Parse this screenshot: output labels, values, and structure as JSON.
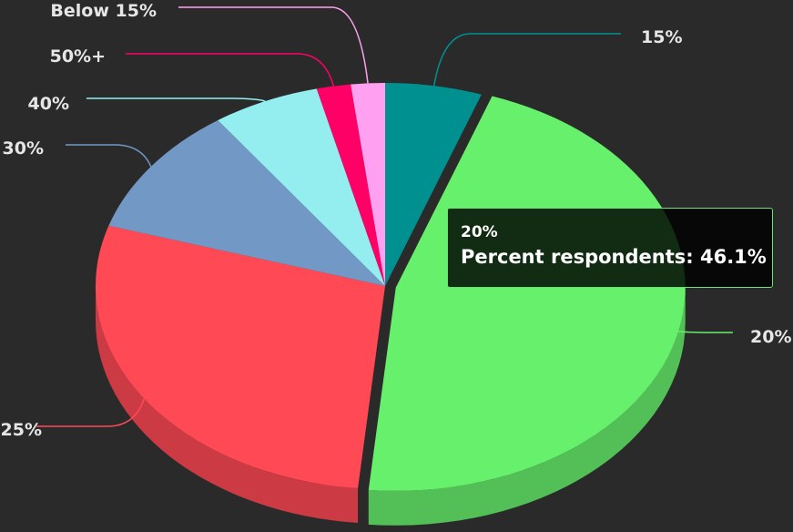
{
  "chart_data": {
    "type": "pie",
    "style": "3d",
    "series": [
      {
        "name": "Percent respondents",
        "values": [
          {
            "label": "15%",
            "value": 5.4,
            "color": "#009090"
          },
          {
            "label": "20%",
            "value": 46.1,
            "color": "#66f06b"
          },
          {
            "label": "25%",
            "value": 28.3,
            "color": "#ff4a55"
          },
          {
            "label": "30%",
            "value": 10.4,
            "color": "#7299c6"
          },
          {
            "label": "40%",
            "value": 6.0,
            "color": "#94eef0"
          },
          {
            "label": "50%+",
            "value": 1.9,
            "color": "#ff0066"
          },
          {
            "label": "Below 15%",
            "value": 1.9,
            "color": "#ffa1f0"
          }
        ]
      }
    ],
    "sliced": "20%"
  },
  "tooltip": {
    "title": "20%",
    "series_name": "Percent respondents",
    "value_text": "46.1%"
  }
}
